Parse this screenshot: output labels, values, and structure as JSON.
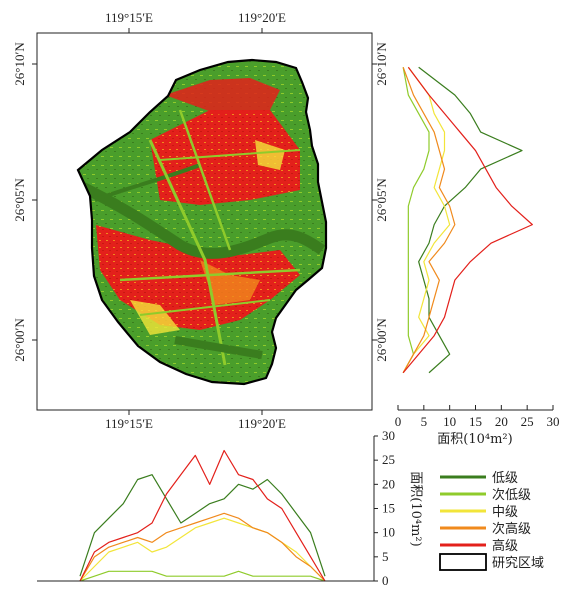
{
  "map": {
    "top_lon_ticks": [
      "119°15′E",
      "119°20′E"
    ],
    "bottom_lon_ticks": [
      "119°15′E",
      "119°20′E"
    ],
    "left_lat_ticks": [
      "26°10′N",
      "26°05′N",
      "26°00′N"
    ],
    "right_lat_ticks": [
      "26°10′N",
      "26°05′N",
      "26°00′N"
    ]
  },
  "right_profile": {
    "xlabel": "面积(10⁴m²)",
    "xticks": [
      "0",
      "5",
      "10",
      "15",
      "20",
      "25",
      "30"
    ],
    "xlim": [
      0,
      30
    ]
  },
  "bottom_profile": {
    "ylabel": "面积(10⁴m²)",
    "yticks": [
      "0",
      "5",
      "10",
      "15",
      "20",
      "25",
      "30"
    ],
    "ylim": [
      0,
      30
    ]
  },
  "legend": {
    "items": [
      {
        "label": "低级",
        "color": "#3a7d1e"
      },
      {
        "label": "次低级",
        "color": "#8fcb2b"
      },
      {
        "label": "中级",
        "color": "#f2e53a"
      },
      {
        "label": "次高级",
        "color": "#f08a1d"
      },
      {
        "label": "高级",
        "color": "#e3201b"
      },
      {
        "label": "研究区域",
        "color": "#000000"
      }
    ]
  },
  "chart_data": [
    {
      "type": "line",
      "orientation": "vertical",
      "xlabel": "面积(10⁴m²)",
      "xlim": [
        0,
        30
      ],
      "ylim": [
        25.95,
        26.18
      ],
      "y": [
        26.145,
        26.13,
        26.12,
        26.11,
        26.1,
        26.09,
        26.08,
        26.07,
        26.06,
        26.05,
        26.04,
        26.03,
        26.02,
        26.01,
        26.0,
        25.99,
        25.98
      ],
      "series": [
        {
          "name": "低级",
          "color": "#3a7d1e",
          "values": [
            4,
            11,
            14,
            16,
            24,
            16,
            13,
            9,
            7,
            6,
            4,
            5,
            6,
            6,
            8,
            10,
            6
          ]
        },
        {
          "name": "次低级",
          "color": "#8fcb2b",
          "values": [
            1,
            2,
            4,
            6,
            6,
            5,
            3,
            2,
            2,
            2,
            2,
            2,
            2,
            2,
            2,
            3,
            1
          ]
        },
        {
          "name": "中级",
          "color": "#f2e53a",
          "values": [
            2,
            6,
            7,
            9,
            9,
            8,
            7,
            9,
            10,
            7,
            5,
            6,
            5,
            4,
            6,
            3,
            1
          ]
        },
        {
          "name": "次高级",
          "color": "#f08a1d",
          "values": [
            1,
            3,
            5,
            7,
            8,
            9,
            8,
            10,
            11,
            9,
            6,
            8,
            7,
            6,
            5,
            3,
            1
          ]
        },
        {
          "name": "高级",
          "color": "#e3201b",
          "values": [
            2,
            6,
            9,
            12,
            15,
            17,
            19,
            22,
            26,
            18,
            14,
            11,
            10,
            9,
            7,
            4,
            1
          ]
        }
      ]
    },
    {
      "type": "line",
      "ylabel": "面积(10⁴m²)",
      "ylim": [
        0,
        30
      ],
      "xlim": [
        119.19,
        119.385
      ],
      "x": [
        119.2,
        119.21,
        119.22,
        119.23,
        119.24,
        119.25,
        119.26,
        119.27,
        119.28,
        119.29,
        119.3,
        119.31,
        119.32,
        119.33,
        119.34,
        119.35,
        119.36,
        119.37
      ],
      "series": [
        {
          "name": "低级",
          "color": "#3a7d1e",
          "values": [
            1,
            10,
            13,
            16,
            21,
            22,
            17,
            12,
            14,
            16,
            17,
            20,
            19,
            21,
            18,
            14,
            10,
            1
          ]
        },
        {
          "name": "次低级",
          "color": "#8fcb2b",
          "values": [
            0,
            1,
            2,
            2,
            2,
            2,
            1,
            1,
            1,
            1,
            1,
            2,
            1,
            1,
            1,
            1,
            1,
            0
          ]
        },
        {
          "name": "中级",
          "color": "#f2e53a",
          "values": [
            0,
            3,
            6,
            7,
            8,
            6,
            7,
            9,
            11,
            12,
            13,
            12,
            11,
            10,
            8,
            6,
            3,
            0
          ]
        },
        {
          "name": "次高级",
          "color": "#f08a1d",
          "values": [
            0,
            5,
            7,
            8,
            9,
            8,
            10,
            11,
            12,
            13,
            14,
            13,
            11,
            10,
            8,
            5,
            3,
            0
          ]
        },
        {
          "name": "高级",
          "color": "#e3201b",
          "values": [
            0,
            6,
            8,
            9,
            10,
            12,
            18,
            22,
            26,
            20,
            27,
            22,
            21,
            17,
            15,
            10,
            5,
            0
          ]
        }
      ]
    }
  ]
}
